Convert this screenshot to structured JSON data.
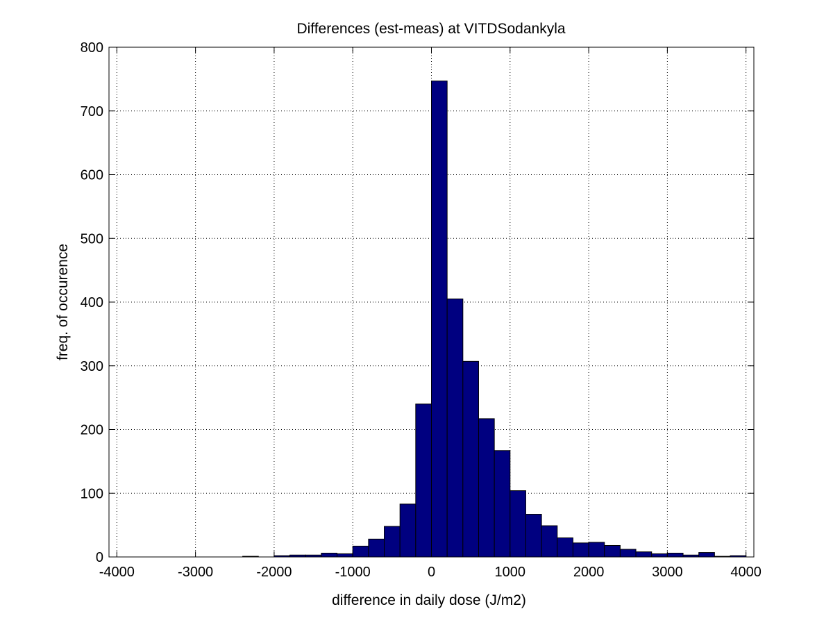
{
  "chart_data": {
    "type": "bar",
    "title": "Differences (est-meas) at VITDSodankyla",
    "xlabel": "difference in daily dose (J/m2)",
    "ylabel": "freq. of occurence",
    "xlim": [
      -4100,
      4100
    ],
    "ylim": [
      0,
      800
    ],
    "xticks": [
      -4000,
      -3000,
      -2000,
      -1000,
      0,
      1000,
      2000,
      3000,
      4000
    ],
    "yticks": [
      0,
      100,
      200,
      300,
      400,
      500,
      600,
      700,
      800
    ],
    "grid": true,
    "bin_width": 200,
    "bar_color": "#000080",
    "edge_color": "#000000",
    "bins": [
      {
        "center": -3900,
        "value": 0
      },
      {
        "center": -3700,
        "value": 0
      },
      {
        "center": -3500,
        "value": 0
      },
      {
        "center": -3300,
        "value": 0
      },
      {
        "center": -3100,
        "value": 0
      },
      {
        "center": -2900,
        "value": 0
      },
      {
        "center": -2700,
        "value": 0
      },
      {
        "center": -2500,
        "value": 0
      },
      {
        "center": -2300,
        "value": 1
      },
      {
        "center": -2100,
        "value": 0
      },
      {
        "center": -1900,
        "value": 2
      },
      {
        "center": -1700,
        "value": 3
      },
      {
        "center": -1500,
        "value": 3
      },
      {
        "center": -1300,
        "value": 6
      },
      {
        "center": -1100,
        "value": 5
      },
      {
        "center": -900,
        "value": 17
      },
      {
        "center": -700,
        "value": 28
      },
      {
        "center": -500,
        "value": 48
      },
      {
        "center": -300,
        "value": 83
      },
      {
        "center": -100,
        "value": 240
      },
      {
        "center": 100,
        "value": 747
      },
      {
        "center": 300,
        "value": 405
      },
      {
        "center": 500,
        "value": 307
      },
      {
        "center": 700,
        "value": 217
      },
      {
        "center": 900,
        "value": 167
      },
      {
        "center": 1100,
        "value": 104
      },
      {
        "center": 1300,
        "value": 67
      },
      {
        "center": 1500,
        "value": 49
      },
      {
        "center": 1700,
        "value": 30
      },
      {
        "center": 1900,
        "value": 22
      },
      {
        "center": 2100,
        "value": 23
      },
      {
        "center": 2300,
        "value": 18
      },
      {
        "center": 2500,
        "value": 12
      },
      {
        "center": 2700,
        "value": 8
      },
      {
        "center": 2900,
        "value": 5
      },
      {
        "center": 3100,
        "value": 6
      },
      {
        "center": 3300,
        "value": 3
      },
      {
        "center": 3500,
        "value": 7
      },
      {
        "center": 3700,
        "value": 1
      },
      {
        "center": 3900,
        "value": 2
      }
    ]
  }
}
